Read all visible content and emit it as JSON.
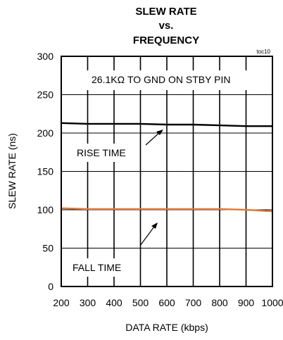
{
  "chart_data": {
    "type": "line",
    "title_lines": [
      "SLEW RATE",
      "vs.",
      "FREQUENCY"
    ],
    "figure_tag": "toc10",
    "xlabel": "DATA RATE (kbps)",
    "ylabel": "SLEW RATE (ns)",
    "xlim": [
      200,
      1000
    ],
    "ylim": [
      0,
      300
    ],
    "x_ticks": [
      200,
      300,
      400,
      500,
      600,
      700,
      800,
      900,
      1000
    ],
    "y_ticks": [
      0,
      50,
      100,
      150,
      200,
      250,
      300
    ],
    "grid": true,
    "series": [
      {
        "name": "RISE TIME",
        "color": "#000000",
        "x": [
          200,
          300,
          400,
          500,
          600,
          700,
          800,
          900,
          1000
        ],
        "y": [
          213,
          212,
          212,
          212,
          211,
          211,
          210,
          209,
          209
        ]
      },
      {
        "name": "FALL TIME",
        "color": "#e07a3a",
        "x": [
          200,
          300,
          400,
          500,
          600,
          700,
          800,
          900,
          1000
        ],
        "y": [
          102,
          101,
          101,
          101,
          101,
          101,
          101,
          100,
          98
        ]
      }
    ],
    "annotations": [
      {
        "text": "26.1KΩ TO GND ON STBY PIN"
      },
      {
        "text": "RISE TIME"
      },
      {
        "text": "FALL TIME"
      }
    ]
  }
}
